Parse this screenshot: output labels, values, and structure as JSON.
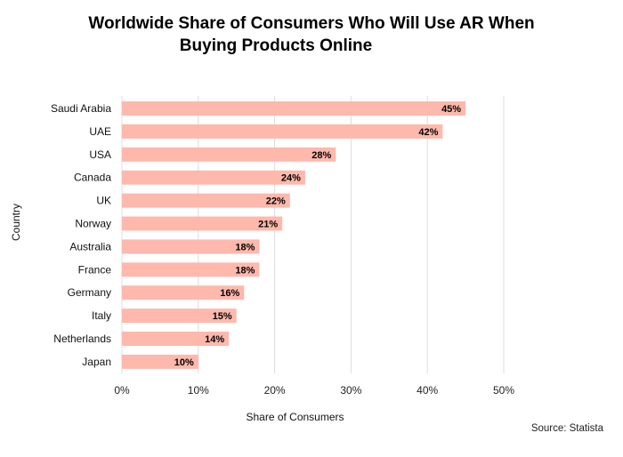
{
  "chart_data": {
    "type": "bar",
    "orientation": "horizontal",
    "title_line1": "Worldwide Share of Consumers Who Will Use AR When",
    "title_line2": "Buying Products Online",
    "xlabel": "Share of Consumers",
    "ylabel": "Country",
    "source": "Source: Statista",
    "categories": [
      "Saudi Arabia",
      "UAE",
      "USA",
      "Canada",
      "UK",
      "Norway",
      "Australia",
      "France",
      "Germany",
      "Italy",
      "Netherlands",
      "Japan"
    ],
    "values": [
      45,
      42,
      28,
      24,
      22,
      21,
      18,
      18,
      16,
      15,
      14,
      10
    ],
    "value_labels": [
      "45%",
      "42%",
      "28%",
      "24%",
      "22%",
      "21%",
      "18%",
      "18%",
      "16%",
      "15%",
      "14%",
      "10%"
    ],
    "x_ticks": [
      0,
      10,
      20,
      30,
      40,
      50
    ],
    "x_tick_labels": [
      "0%",
      "10%",
      "20%",
      "30%",
      "40%",
      "50%"
    ],
    "xlim": [
      0,
      50
    ],
    "grid": true,
    "bar_color": "#ffb8ac"
  }
}
